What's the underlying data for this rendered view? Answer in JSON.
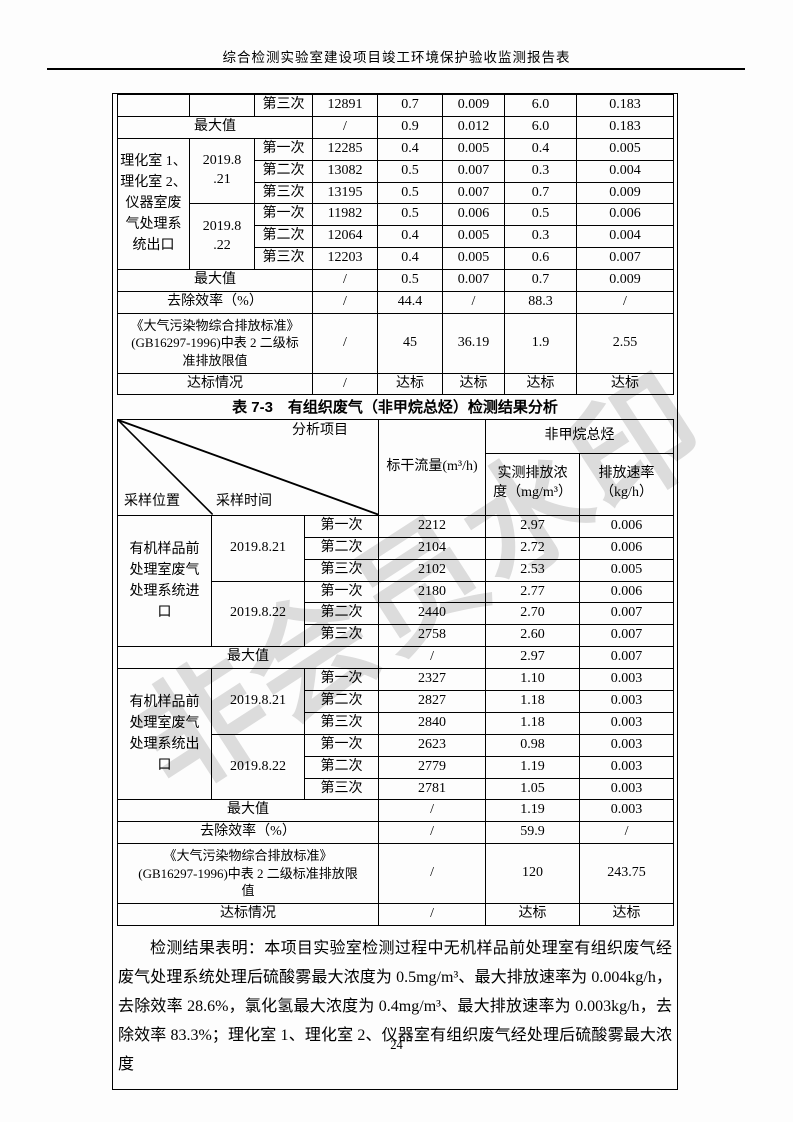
{
  "header": {
    "title": "综合检测实验室建设项目竣工环境保护验收监测报告表"
  },
  "watermark": "非会员水印",
  "page_number": "24",
  "table1": {
    "rows": [
      [
        {
          "t": ""
        },
        {
          "t": ""
        },
        {
          "t": "第三次"
        },
        {
          "t": "12891"
        },
        {
          "t": "0.7"
        },
        {
          "t": "0.009"
        },
        {
          "t": "6.0"
        },
        {
          "t": "0.183"
        }
      ],
      [
        {
          "t": "最大值",
          "cs": 3,
          "n": "max-value-label"
        },
        {
          "t": "/"
        },
        {
          "t": "0.9"
        },
        {
          "t": "0.012"
        },
        {
          "t": "6.0"
        },
        {
          "t": "0.183"
        }
      ],
      [
        {
          "t": "理化室 1、\n理化室 2、\n仪器室废\n气处理系\n统出口",
          "rs": 6,
          "cls": "loc",
          "n": "sampling-location-cell"
        },
        {
          "t": "2019.8\n.21",
          "rs": 3,
          "n": "sampling-date-cell"
        },
        {
          "t": "第一次"
        },
        {
          "t": "12285"
        },
        {
          "t": "0.4"
        },
        {
          "t": "0.005"
        },
        {
          "t": "0.4"
        },
        {
          "t": "0.005"
        }
      ],
      [
        {
          "t": "第二次"
        },
        {
          "t": "13082"
        },
        {
          "t": "0.5"
        },
        {
          "t": "0.007"
        },
        {
          "t": "0.3"
        },
        {
          "t": "0.004"
        }
      ],
      [
        {
          "t": "第三次"
        },
        {
          "t": "13195"
        },
        {
          "t": "0.5"
        },
        {
          "t": "0.007"
        },
        {
          "t": "0.7"
        },
        {
          "t": "0.009"
        }
      ],
      [
        {
          "t": "2019.8\n.22",
          "rs": 3,
          "n": "sampling-date-cell"
        },
        {
          "t": "第一次"
        },
        {
          "t": "11982"
        },
        {
          "t": "0.5"
        },
        {
          "t": "0.006"
        },
        {
          "t": "0.5"
        },
        {
          "t": "0.006"
        }
      ],
      [
        {
          "t": "第二次"
        },
        {
          "t": "12064"
        },
        {
          "t": "0.4"
        },
        {
          "t": "0.005"
        },
        {
          "t": "0.3"
        },
        {
          "t": "0.004"
        }
      ],
      [
        {
          "t": "第三次"
        },
        {
          "t": "12203"
        },
        {
          "t": "0.4"
        },
        {
          "t": "0.005"
        },
        {
          "t": "0.6"
        },
        {
          "t": "0.007"
        }
      ],
      [
        {
          "t": "最大值",
          "cs": 3,
          "n": "max-value-label"
        },
        {
          "t": "/"
        },
        {
          "t": "0.5"
        },
        {
          "t": "0.007"
        },
        {
          "t": "0.7"
        },
        {
          "t": "0.009"
        }
      ],
      [
        {
          "t": "去除效率（%）",
          "cs": 3,
          "n": "removal-efficiency-label"
        },
        {
          "t": "/"
        },
        {
          "t": "44.4"
        },
        {
          "t": "/"
        },
        {
          "t": "88.3"
        },
        {
          "t": "/"
        }
      ],
      [
        {
          "t": "《大气污染物综合排放标准》\n(GB16297-1996)中表 2 二级标\n准排放限值",
          "cs": 3,
          "cls": "std",
          "n": "standard-limit-label"
        },
        {
          "t": "/"
        },
        {
          "t": "45"
        },
        {
          "t": "36.19"
        },
        {
          "t": "1.9"
        },
        {
          "t": "2.55"
        }
      ],
      [
        {
          "t": "达标情况",
          "cs": 3,
          "n": "compliance-label"
        },
        {
          "t": "/"
        },
        {
          "t": "达标"
        },
        {
          "t": "达标"
        },
        {
          "t": "达标"
        },
        {
          "t": "达标"
        }
      ]
    ]
  },
  "table2_title": "表 7-3　有组织废气（非甲烷总烃）检测结果分析",
  "table2": {
    "header": {
      "analysis_item": "分析项目",
      "sampling_time": "采样时间",
      "sampling_location": "采样位置",
      "flow": "标干流量(m³/h)",
      "group": "非甲烷总烃",
      "concentration": "实测排放浓\n度（mg/m³）",
      "rate": "排放速率\n（kg/h）"
    },
    "rows": [
      [
        {
          "t": "有机样品前\n处理室废气\n处理系统进\n口",
          "rs": 6,
          "cls": "loc",
          "n": "sampling-location-cell"
        },
        {
          "t": "2019.8.21",
          "rs": 3,
          "n": "sampling-date-cell"
        },
        {
          "t": "第一次"
        },
        {
          "t": "2212"
        },
        {
          "t": "2.97"
        },
        {
          "t": "0.006"
        }
      ],
      [
        {
          "t": "第二次"
        },
        {
          "t": "2104"
        },
        {
          "t": "2.72"
        },
        {
          "t": "0.006"
        }
      ],
      [
        {
          "t": "第三次"
        },
        {
          "t": "2102"
        },
        {
          "t": "2.53"
        },
        {
          "t": "0.005"
        }
      ],
      [
        {
          "t": "2019.8.22",
          "rs": 3,
          "n": "sampling-date-cell"
        },
        {
          "t": "第一次"
        },
        {
          "t": "2180"
        },
        {
          "t": "2.77"
        },
        {
          "t": "0.006"
        }
      ],
      [
        {
          "t": "第二次"
        },
        {
          "t": "2440"
        },
        {
          "t": "2.70"
        },
        {
          "t": "0.007"
        }
      ],
      [
        {
          "t": "第三次"
        },
        {
          "t": "2758"
        },
        {
          "t": "2.60"
        },
        {
          "t": "0.007"
        }
      ],
      [
        {
          "t": "最大值",
          "cs": 3,
          "n": "max-value-label"
        },
        {
          "t": "/"
        },
        {
          "t": "2.97"
        },
        {
          "t": "0.007"
        }
      ],
      [
        {
          "t": "有机样品前\n处理室废气\n处理系统出\n口",
          "rs": 6,
          "cls": "loc",
          "n": "sampling-location-cell"
        },
        {
          "t": "2019.8.21",
          "rs": 3,
          "n": "sampling-date-cell"
        },
        {
          "t": "第一次"
        },
        {
          "t": "2327"
        },
        {
          "t": "1.10"
        },
        {
          "t": "0.003"
        }
      ],
      [
        {
          "t": "第二次"
        },
        {
          "t": "2827"
        },
        {
          "t": "1.18"
        },
        {
          "t": "0.003"
        }
      ],
      [
        {
          "t": "第三次"
        },
        {
          "t": "2840"
        },
        {
          "t": "1.18"
        },
        {
          "t": "0.003"
        }
      ],
      [
        {
          "t": "2019.8.22",
          "rs": 3,
          "n": "sampling-date-cell"
        },
        {
          "t": "第一次"
        },
        {
          "t": "2623"
        },
        {
          "t": "0.98"
        },
        {
          "t": "0.003"
        }
      ],
      [
        {
          "t": "第二次"
        },
        {
          "t": "2779"
        },
        {
          "t": "1.19"
        },
        {
          "t": "0.003"
        }
      ],
      [
        {
          "t": "第三次"
        },
        {
          "t": "2781"
        },
        {
          "t": "1.05"
        },
        {
          "t": "0.003"
        }
      ],
      [
        {
          "t": "最大值",
          "cs": 3,
          "n": "max-value-label"
        },
        {
          "t": "/"
        },
        {
          "t": "1.19"
        },
        {
          "t": "0.003"
        }
      ],
      [
        {
          "t": "去除效率（%）",
          "cs": 3,
          "n": "removal-efficiency-label"
        },
        {
          "t": "/"
        },
        {
          "t": "59.9"
        },
        {
          "t": "/"
        }
      ],
      [
        {
          "t": "《大气污染物综合排放标准》\n(GB16297-1996)中表 2 二级标准排放限\n值",
          "cs": 3,
          "cls": "std",
          "n": "standard-limit-label"
        },
        {
          "t": "/"
        },
        {
          "t": "120"
        },
        {
          "t": "243.75"
        }
      ],
      [
        {
          "t": "达标情况",
          "cs": 3,
          "n": "compliance-label"
        },
        {
          "t": "/"
        },
        {
          "t": "达标"
        },
        {
          "t": "达标"
        }
      ]
    ]
  },
  "summary_paragraph": "检测结果表明：本项目实验室检测过程中无机样品前处理室有组织废气经废气处理系统处理后硫酸雾最大浓度为 0.5mg/m³、最大排放速率为 0.004kg/h，去除效率 28.6%，氯化氢最大浓度为 0.4mg/m³、最大排放速率为 0.003kg/h，去除效率 83.3%；理化室 1、理化室 2、仪器室有组织废气经处理后硫酸雾最大浓度"
}
